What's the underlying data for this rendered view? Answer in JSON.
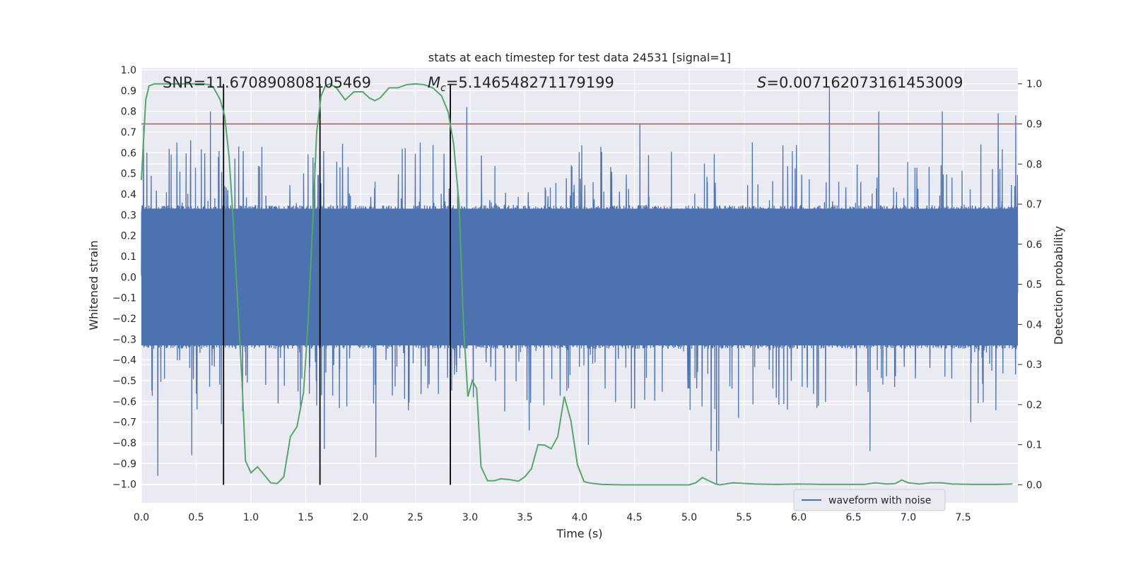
{
  "chart_data": {
    "type": "line",
    "title": "stats at each timestep for test data 24531 [signal=1]",
    "xlabel": "Time (s)",
    "ylabel_left": "Whitened strain",
    "ylabel_right": "Detection probability",
    "xlim": [
      0.0,
      8.0
    ],
    "ylim_left": [
      -1.09,
      1.01
    ],
    "ylim_right": [
      -0.045,
      1.04
    ],
    "x_ticks": [
      "0.0",
      "0.5",
      "1.0",
      "1.5",
      "2.0",
      "2.5",
      "3.0",
      "3.5",
      "4.0",
      "4.5",
      "5.0",
      "5.5",
      "6.0",
      "6.5",
      "7.0",
      "7.5"
    ],
    "y_left_ticks": [
      "1.0",
      "0.9",
      "0.8",
      "0.7",
      "0.6",
      "0.5",
      "0.4",
      "0.3",
      "0.2",
      "0.1",
      "0.0",
      "−0.1",
      "−0.2",
      "−0.3",
      "−0.4",
      "−0.5",
      "−0.6",
      "−0.7",
      "−0.8",
      "−0.9",
      "−1.0"
    ],
    "y_right_ticks": [
      "0.0",
      "0.1",
      "0.2",
      "0.3",
      "0.4",
      "0.5",
      "0.6",
      "0.7",
      "0.8",
      "0.9",
      "1.0"
    ],
    "annotations": {
      "snr": "SNR=11.670890808105469",
      "mc_symbol": "M",
      "mc_sub": "c",
      "mc_value": "=5.146548271179199",
      "s_symbol": "S",
      "s_value": "=0.007162073161453009"
    },
    "threshold": {
      "value": 0.9,
      "axis": "right",
      "color": "#c44e52"
    },
    "vertical_markers": [
      0.75,
      1.63,
      2.82
    ],
    "legend": {
      "label": "waveform with noise",
      "location": "lower right"
    },
    "series": [
      {
        "name": "waveform with noise",
        "axis": "left",
        "color": "#4c72b0",
        "samples": 4096,
        "core_amplitude": 0.33,
        "spikes": [
          {
            "x": 0.02,
            "y": 0.73
          },
          {
            "x": 0.05,
            "y": 0.6
          },
          {
            "x": 0.15,
            "y": -0.96
          },
          {
            "x": 0.45,
            "y": 0.66
          },
          {
            "x": 0.46,
            "y": -0.86
          },
          {
            "x": 0.63,
            "y": 0.8
          },
          {
            "x": 0.73,
            "y": -0.71
          },
          {
            "x": 1.6,
            "y": -0.62
          },
          {
            "x": 1.67,
            "y": -0.83
          },
          {
            "x": 2.14,
            "y": -0.87
          },
          {
            "x": 2.82,
            "y": 0.7
          },
          {
            "x": 2.97,
            "y": 0.82
          },
          {
            "x": 3.03,
            "y": -0.58
          },
          {
            "x": 3.54,
            "y": -0.74
          },
          {
            "x": 4.08,
            "y": -0.81
          },
          {
            "x": 4.55,
            "y": 0.74
          },
          {
            "x": 5.2,
            "y": -0.84
          },
          {
            "x": 5.25,
            "y": -1.0
          },
          {
            "x": 5.27,
            "y": -0.84
          },
          {
            "x": 5.45,
            "y": -0.68
          },
          {
            "x": 6.28,
            "y": 0.92
          },
          {
            "x": 6.65,
            "y": -0.84
          },
          {
            "x": 6.73,
            "y": 0.8
          },
          {
            "x": 7.31,
            "y": 0.8
          },
          {
            "x": 7.57,
            "y": -0.7
          },
          {
            "x": 7.82,
            "y": 0.79
          },
          {
            "x": 7.98,
            "y": 0.78
          }
        ]
      },
      {
        "name": "detection probability",
        "axis": "right",
        "color": "#55a868",
        "x": [
          0.0,
          0.04,
          0.07,
          0.12,
          0.2,
          0.3,
          0.4,
          0.5,
          0.56,
          0.62,
          0.66,
          0.72,
          0.76,
          0.8,
          0.84,
          0.88,
          0.92,
          0.95,
          1.0,
          1.06,
          1.12,
          1.18,
          1.24,
          1.3,
          1.36,
          1.42,
          1.48,
          1.52,
          1.56,
          1.6,
          1.64,
          1.68,
          1.72,
          1.78,
          1.86,
          1.94,
          2.02,
          2.08,
          2.13,
          2.18,
          2.26,
          2.34,
          2.42,
          2.5,
          2.58,
          2.66,
          2.74,
          2.8,
          2.85,
          2.9,
          2.94,
          2.98,
          3.02,
          3.06,
          3.1,
          3.16,
          3.22,
          3.28,
          3.36,
          3.44,
          3.5,
          3.56,
          3.62,
          3.68,
          3.74,
          3.8,
          3.86,
          3.92,
          3.98,
          4.04,
          4.1,
          4.2,
          4.4,
          4.6,
          4.8,
          5.0,
          5.06,
          5.12,
          5.18,
          5.24,
          5.28,
          5.4,
          5.6,
          5.8,
          6.0,
          6.2,
          6.4,
          6.6,
          6.7,
          6.8,
          6.88,
          6.94,
          7.0,
          7.1,
          7.2,
          7.3,
          7.4,
          7.6,
          7.8,
          7.95
        ],
        "y": [
          0.76,
          0.96,
          0.995,
          1.0,
          1.0,
          1.0,
          1.0,
          1.0,
          1.0,
          0.998,
          0.99,
          0.96,
          0.92,
          0.82,
          0.65,
          0.45,
          0.25,
          0.06,
          0.03,
          0.045,
          0.025,
          0.005,
          0.003,
          0.02,
          0.12,
          0.145,
          0.23,
          0.4,
          0.63,
          0.88,
          0.97,
          0.995,
          1.0,
          0.99,
          0.96,
          0.98,
          0.98,
          0.965,
          0.958,
          0.965,
          0.99,
          0.99,
          0.998,
          1.0,
          0.998,
          0.99,
          0.97,
          0.93,
          0.85,
          0.7,
          0.4,
          0.22,
          0.26,
          0.24,
          0.045,
          0.01,
          0.01,
          0.015,
          0.013,
          0.009,
          0.02,
          0.04,
          0.1,
          0.099,
          0.09,
          0.12,
          0.22,
          0.16,
          0.05,
          0.008,
          0.004,
          0.001,
          0.0,
          0.0,
          0.0,
          0.0,
          0.005,
          0.018,
          0.01,
          0.002,
          0.0,
          0.005,
          0.002,
          0.001,
          0.002,
          0.001,
          0.001,
          0.001,
          0.005,
          0.002,
          0.003,
          0.012,
          0.005,
          0.002,
          0.005,
          0.005,
          0.002,
          0.001,
          0.001,
          0.002
        ]
      }
    ]
  }
}
